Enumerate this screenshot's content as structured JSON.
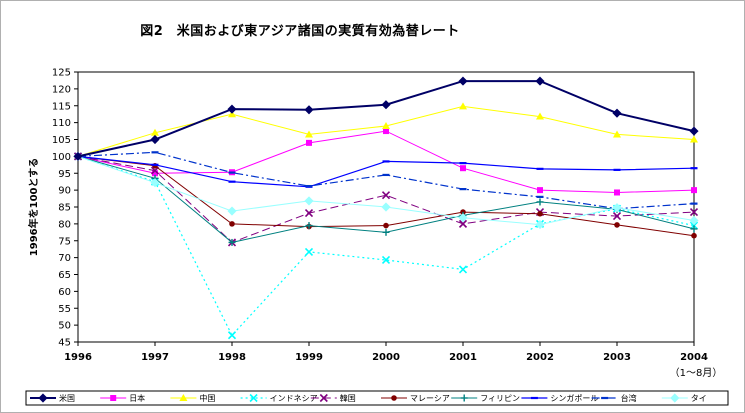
{
  "chart_data": {
    "type": "line",
    "title": "図2　米国および東アジア諸国の実質有効為替レート",
    "ylabel": "1996年を100とする",
    "xlabel": "",
    "x": [
      "1996",
      "1997",
      "1998",
      "1999",
      "2000",
      "2001",
      "2002",
      "2003",
      "2004"
    ],
    "x_note": "（1～8月）",
    "ylim": [
      45,
      125
    ],
    "yticks": [
      45,
      50,
      55,
      60,
      65,
      70,
      75,
      80,
      85,
      90,
      95,
      100,
      105,
      110,
      115,
      120,
      125
    ],
    "grid": false,
    "legend": "bottom",
    "series": [
      {
        "name": "米国",
        "color": "#000066",
        "values": [
          100,
          105,
          114,
          113.8,
          115.3,
          122.3,
          122.3,
          112.8,
          107.5
        ]
      },
      {
        "name": "日本",
        "color": "#ff00ff",
        "values": [
          100,
          95,
          95.3,
          104,
          107.5,
          96.5,
          90,
          89.3,
          90
        ]
      },
      {
        "name": "中国",
        "color": "#ffff00",
        "values": [
          100,
          107,
          112.5,
          106.5,
          109,
          114.8,
          111.8,
          106.5,
          105
        ]
      },
      {
        "name": "インドネシア",
        "color": "#00ffff",
        "values": [
          100,
          92.5,
          47,
          71.7,
          69.3,
          66.5,
          80,
          84.5,
          79.5
        ]
      },
      {
        "name": "韓国",
        "color": "#800080",
        "values": [
          100,
          95.8,
          74.5,
          83.2,
          88.5,
          80,
          83.5,
          82.3,
          83.5
        ]
      },
      {
        "name": "マレーシア",
        "color": "#800000",
        "values": [
          100,
          97.2,
          80,
          79.2,
          79.5,
          83.5,
          83,
          79.7,
          76.5
        ]
      },
      {
        "name": "フィリピン",
        "color": "#008080",
        "values": [
          100,
          93.5,
          74.5,
          79.5,
          77.5,
          82.5,
          86.5,
          84.3,
          78.5
        ]
      },
      {
        "name": "シンガポール",
        "color": "#0000ff",
        "values": [
          100,
          97.5,
          92.5,
          91,
          98.5,
          98,
          96.3,
          96,
          96.5
        ]
      },
      {
        "name": "台湾",
        "color": "#0033cc",
        "values": [
          100,
          101.2,
          95.2,
          91.2,
          94.5,
          90.3,
          88,
          84.5,
          86
        ]
      },
      {
        "name": "タイ",
        "color": "#99ffff",
        "values": [
          100,
          92.2,
          83.8,
          86.8,
          85,
          81.8,
          79.8,
          84.8,
          81
        ]
      }
    ]
  }
}
